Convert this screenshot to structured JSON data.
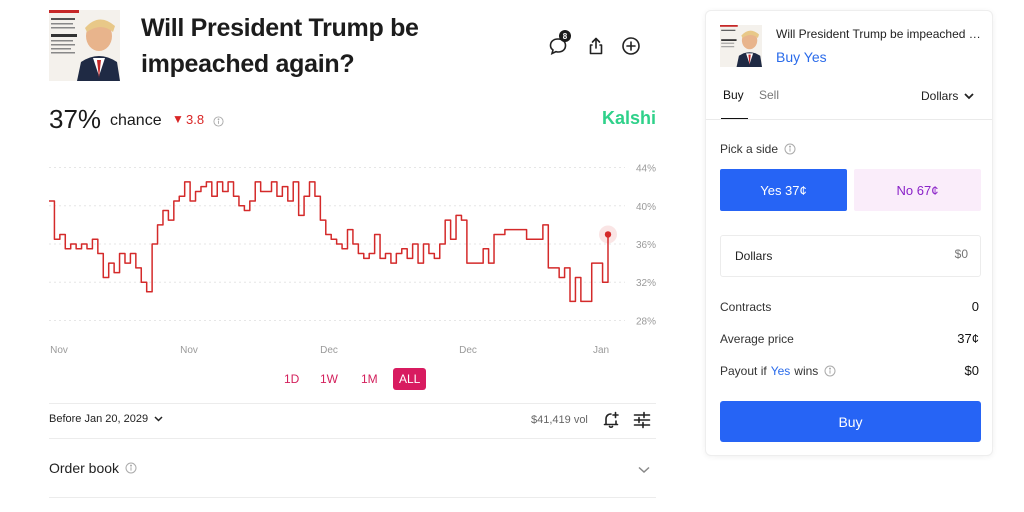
{
  "market": {
    "title": "Will President Trump be impeached again?",
    "brand": "Kalshi",
    "chance_value": "37%",
    "chance_label": "chance",
    "change_value": "3.8",
    "change_direction": "down",
    "close_label": "Before Jan 20, 2029",
    "volume": "$41,419 vol",
    "comments_count": "8",
    "order_book_label": "Order book"
  },
  "icons": {
    "comments": "comment-icon",
    "share": "share-icon",
    "add": "plus-circle-icon",
    "info": "info-icon",
    "alert": "bell-plus-icon",
    "settings": "sliders-icon",
    "dropdown": "chevron-down-icon"
  },
  "chart_data": {
    "type": "line",
    "xlabel": "",
    "ylabel": "",
    "x_tick_labels": [
      "Nov",
      "Nov",
      "Dec",
      "Dec",
      "Jan"
    ],
    "y_tick_labels": [
      "44%",
      "40%",
      "36%",
      "32%",
      "28%"
    ],
    "ylim": [
      27,
      45
    ],
    "grid": true,
    "series": [
      {
        "color": "#d42a2a",
        "values": [
          40.5,
          36.5,
          37,
          35.5,
          36,
          35.5,
          36,
          35.5,
          36.5,
          35,
          32.5,
          34,
          33,
          35,
          34,
          35,
          33.5,
          32,
          31,
          36,
          38,
          39.5,
          38.5,
          40.5,
          41,
          42.5,
          40.5,
          41.5,
          42,
          42.5,
          41,
          42.5,
          41.5,
          42.5,
          41,
          40,
          39.5,
          40.5,
          42.5,
          41.5,
          41.5,
          42.5,
          41,
          42,
          40.5,
          42.5,
          39,
          41,
          42.5,
          41,
          38.5,
          37,
          36.5,
          36,
          35.5,
          37.5,
          36,
          35,
          34.5,
          35,
          37,
          34.5,
          35,
          34,
          35,
          35.5,
          34.5,
          36,
          34,
          36,
          35,
          34.5,
          36,
          38.5,
          36.5,
          39,
          38.5,
          34,
          34,
          34,
          35.5,
          34,
          37,
          37,
          37.5,
          37.5,
          37.5,
          37.5,
          36.5,
          36.5,
          36.5,
          38,
          33.5,
          33.5,
          32.5,
          33.5,
          30,
          32.5,
          30,
          30,
          34,
          34,
          32,
          37
        ],
        "current_value": 37
      }
    ]
  },
  "ranges": [
    {
      "label": "1D",
      "active": false
    },
    {
      "label": "1W",
      "active": false
    },
    {
      "label": "1M",
      "active": false
    },
    {
      "label": "ALL",
      "active": true
    }
  ],
  "trade": {
    "title": "Will President Trump be impeached again?",
    "action_label": "Buy Yes",
    "tab_buy": "Buy",
    "tab_sell": "Sell",
    "unit": "Dollars",
    "pick_side_label": "Pick a side",
    "yes_label": "Yes 37¢",
    "no_label": "No 67¢",
    "amount_label": "Dollars",
    "amount_placeholder": "$0",
    "contracts_label": "Contracts",
    "contracts_value": "0",
    "avg_price_label": "Average price",
    "avg_price_value": "37¢",
    "payout_prefix": "Payout if",
    "payout_side": "Yes",
    "payout_suffix": "wins",
    "payout_value": "$0",
    "buy_button": "Buy"
  },
  "colors": {
    "accent_blue": "#2664f5",
    "brand_green": "#2fd18a",
    "down_red": "#d92626",
    "range_pink": "#d81b60",
    "no_purple": "#8a22c8"
  }
}
